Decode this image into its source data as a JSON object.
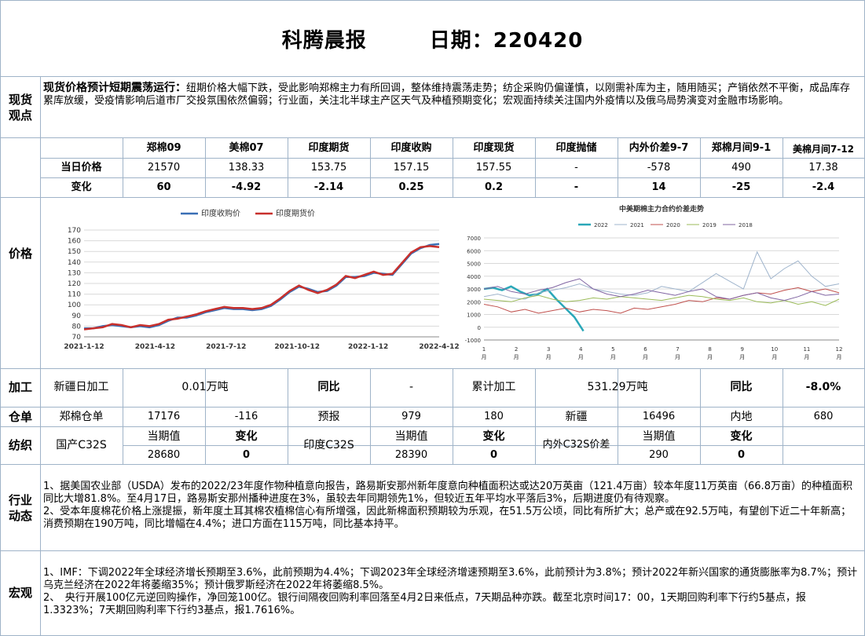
{
  "header": {
    "title": "科腾晨报",
    "date_label": "日期：220420"
  },
  "labels": {
    "spot": "现货观点",
    "price": "价格",
    "processing": "加工",
    "warehouse": "仓单",
    "textile": "纺织",
    "industry": "行业动态",
    "macro": "宏观"
  },
  "spot_view": {
    "headline": "现货价格预计短期震荡运行：",
    "body": "纽期价格大幅下跌，受此影响郑棉主力有所回调，整体维持震荡走势；纺企采购仍偏谨慎，以刚需补库为主，随用随买；产销依然不平衡，成品库存累库放缓，受疫情影响后道市厂交投氛围依然偏弱；行业面，关注北半球主产区天气及种植预期变化；宏观面持续关注国内外疫情以及俄乌局势演变对金融市场影响。"
  },
  "price_table": {
    "columns": [
      "郑棉09",
      "美棉07",
      "印度期货",
      "印度收购",
      "印度现货",
      "印度抛储",
      "内外价差9-7",
      "郑棉月间9-1",
      "美棉月间7-12"
    ],
    "rows": [
      {
        "label": "当日价格",
        "values": [
          "21570",
          "138.33",
          "153.75",
          "157.15",
          "157.55",
          "-",
          "-578",
          "490",
          "17.38"
        ]
      },
      {
        "label": "变化",
        "values": [
          "60",
          "-4.92",
          "-2.14",
          "0.25",
          "0.2",
          "-",
          "14",
          "-25",
          "-2.4"
        ]
      }
    ]
  },
  "chart_data": [
    {
      "type": "line",
      "title": "",
      "legend": [
        "印度收购价",
        "印度期货价"
      ],
      "legend_position": "top",
      "x_tick_labels": [
        "2021-1-12",
        "2021-4-12",
        "2021-7-12",
        "2021-10-12",
        "2022-1-12",
        "2022-4-12"
      ],
      "y_tick_labels": [
        "70",
        "80",
        "90",
        "100",
        "110",
        "120",
        "130",
        "140",
        "150",
        "160",
        "170"
      ],
      "ylim": [
        70,
        170
      ],
      "grid": true,
      "series": [
        {
          "name": "印度收购价",
          "color": "#3a6fb5",
          "values": [
            78,
            78,
            80,
            81,
            80,
            79,
            80,
            79,
            81,
            85,
            88,
            88,
            90,
            93,
            95,
            97,
            96,
            96,
            95,
            96,
            99,
            105,
            112,
            117,
            115,
            112,
            113,
            118,
            126,
            126,
            127,
            130,
            129,
            128,
            138,
            148,
            153,
            156,
            157
          ]
        },
        {
          "name": "印度期货价",
          "color": "#c8302c",
          "values": [
            77,
            78,
            79,
            82,
            81,
            79,
            81,
            80,
            82,
            86,
            87,
            89,
            91,
            94,
            96,
            98,
            97,
            97,
            96,
            97,
            100,
            106,
            113,
            118,
            114,
            111,
            114,
            119,
            127,
            125,
            128,
            131,
            128,
            129,
            139,
            149,
            154,
            155,
            154
          ]
        }
      ]
    },
    {
      "type": "line",
      "title": "中美期棉主力合约价差走势",
      "legend": [
        "2022",
        "2021",
        "2020",
        "2019",
        "2018"
      ],
      "legend_position": "top",
      "x_tick_labels": [
        "1月",
        "2月",
        "3月",
        "4月",
        "5月",
        "6月",
        "7月",
        "8月",
        "9月",
        "10月",
        "11月",
        "12月"
      ],
      "y_tick_labels": [
        "-1000",
        "0",
        "1000",
        "2000",
        "3000",
        "4000",
        "5000",
        "6000",
        "7000"
      ],
      "ylim": [
        -1000,
        7000
      ],
      "grid": true,
      "series": [
        {
          "name": "2022",
          "color": "#2aa7b8",
          "values": [
            3000,
            3100,
            2900,
            3200,
            2800,
            2500,
            2600,
            3000,
            2200,
            1500,
            800,
            -300
          ]
        },
        {
          "name": "2021",
          "color": "#9fb4cc",
          "values": [
            2400,
            2600,
            2300,
            2200,
            2700,
            2900,
            3100,
            3400,
            3000,
            2800,
            2600,
            2500,
            2700,
            3200,
            3000,
            2800,
            3500,
            4200,
            3600,
            3000,
            5900,
            3800,
            4600,
            5200,
            4000,
            3200,
            3400
          ]
        },
        {
          "name": "2020",
          "color": "#c0504d",
          "values": [
            1800,
            1600,
            1200,
            1400,
            1100,
            1300,
            1500,
            1200,
            1400,
            1300,
            1100,
            1500,
            1400,
            1600,
            1800,
            2100,
            2000,
            2300,
            2200,
            2500,
            2700,
            2600,
            2900,
            3100,
            2800,
            3000,
            2700
          ]
        },
        {
          "name": "2019",
          "color": "#9bbb59",
          "values": [
            2200,
            2100,
            2000,
            2300,
            2500,
            2200,
            2000,
            2100,
            2300,
            2200,
            2400,
            2300,
            2200,
            2100,
            2300,
            2500,
            2400,
            2200,
            2100,
            2300,
            2000,
            1900,
            2100,
            1800,
            2000,
            1700,
            2200
          ]
        },
        {
          "name": "2018",
          "color": "#8064a2",
          "values": [
            3000,
            3200,
            2800,
            2600,
            2900,
            3100,
            3500,
            3800,
            3000,
            2600,
            2400,
            2600,
            2900,
            2700,
            2500,
            2800,
            3000,
            2400,
            2200,
            2500,
            2700,
            2300,
            2100,
            2400,
            2800,
            2500,
            2600
          ]
        }
      ]
    }
  ],
  "processing": {
    "xinjiang_label": "新疆日加工",
    "xinjiang_value": "0.01万吨",
    "yoy_label1": "同比",
    "yoy_value1": "-",
    "cumulative_label": "累计加工",
    "cumulative_value": "531.29万吨",
    "yoy_label2": "同比",
    "yoy_value2": "-8.0%"
  },
  "warehouse": {
    "zc_label": "郑棉仓单",
    "zc_value": "17176",
    "zc_change": "-116",
    "forecast_label": "预报",
    "forecast_value": "979",
    "forecast_change": "180",
    "xj_label": "新疆",
    "xj_value": "16496",
    "inland_label": "内地",
    "inland_value": "680"
  },
  "textile": {
    "cur_label": "当期值",
    "chg_label": "变化",
    "domestic_label": "国产C32S",
    "domestic_value": "28680",
    "domestic_change": "0",
    "india_label": "印度C32S",
    "india_value": "28390",
    "india_change": "0",
    "spread_label": "内外C32S价差",
    "spread_value": "290",
    "spread_change": "0"
  },
  "industry_news": [
    "1、据美国农业部（USDA）发布的2022/23年度作物种植意向报告，路易斯安那州新年度意向种植面积达或达20万英亩（121.4万亩）较本年度11万英亩（66.8万亩）的种植面积同比大增81.8%。至4月17日，路易斯安那州播种进度在3%，虽较去年同期领先1%，但较近五年平均水平落后3%，后期进度仍有待观察。",
    "2、受本年度棉花价格上涨提振，新年度土耳其棉农植棉信心有所增强，因此新棉面积预期较为乐观，在51.5万公顷，同比有所扩大；总产或在92.5万吨，有望创下近二十年新高；消费预期在190万吨，同比增幅在4.4%；进口方面在115万吨，同比基本持平。"
  ],
  "macro_news": [
    "1、IMF：下调2022年全球经济增长预期至3.6%，此前预期为4.4%；下调2023年全球经济增速预期至3.6%，此前预计为3.8%；预计2022年新兴国家的通货膨胀率为8.7%；预计乌克兰经济在2022年将萎缩35%；预计俄罗斯经济在2022年将萎缩8.5%。",
    "2、　央行开展100亿元逆回购操作，净回笼100亿。银行间隔夜回购利率回落至4月2日来低点，7天期品种亦跌。截至北京时间17：00，1天期回购利率下行约5基点，报1.3323%；7天期回购利率下行约3基点，报1.7616%。"
  ]
}
